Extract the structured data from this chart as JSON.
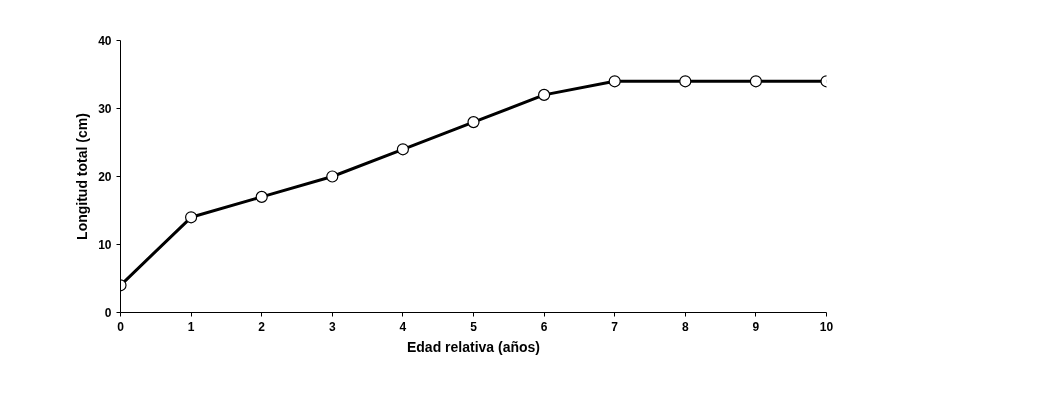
{
  "chart_data": {
    "type": "line",
    "xlabel": "Edad relativa (años)",
    "ylabel": "Longitud total (cm)",
    "x": [
      0,
      1,
      2,
      3,
      4,
      5,
      6,
      7,
      8,
      9,
      10
    ],
    "series": [
      {
        "color": "#000000",
        "values": [
          4,
          14,
          17,
          20,
          24,
          28,
          32,
          34,
          34,
          34,
          34
        ]
      }
    ],
    "xlim": [
      0,
      10
    ],
    "xticks": [
      0,
      1,
      2,
      3,
      4,
      5,
      6,
      7,
      8,
      9,
      10
    ],
    "ylim": [
      0,
      40
    ],
    "yticks": [
      0,
      10,
      20,
      30,
      40
    ],
    "grid": false,
    "marker": "circle",
    "line_style": "solid"
  }
}
